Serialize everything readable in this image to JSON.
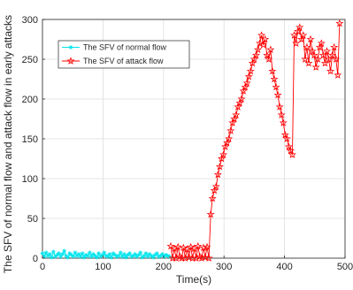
{
  "chart_data": {
    "type": "line",
    "title": "",
    "xlabel": "Time(s)",
    "ylabel": "The SFV of normal flow and attack flow in early attacks",
    "xlim": [
      0,
      500
    ],
    "ylim": [
      0,
      300
    ],
    "xticks": [
      "0",
      "100",
      "200",
      "300",
      "400",
      "500"
    ],
    "yticks": [
      "0",
      "50",
      "100",
      "150",
      "200",
      "250",
      "300"
    ],
    "grid": true,
    "legend_position": "top-left",
    "series": [
      {
        "name": "The SFV of normal flow",
        "color": "#00e5ee",
        "marker": "asterisk",
        "x": [
          0,
          3,
          6,
          9,
          12,
          15,
          18,
          21,
          24,
          27,
          30,
          33,
          36,
          39,
          42,
          45,
          48,
          51,
          54,
          57,
          60,
          63,
          66,
          69,
          72,
          75,
          78,
          81,
          84,
          87,
          90,
          93,
          96,
          99,
          102,
          105,
          108,
          111,
          114,
          117,
          120,
          123,
          126,
          129,
          132,
          135,
          138,
          141,
          144,
          147,
          150,
          153,
          156,
          159,
          162,
          165,
          168,
          171,
          174,
          177,
          180,
          183,
          186,
          189,
          192,
          195,
          198,
          201,
          204,
          207,
          210
        ],
        "values": [
          6,
          2,
          7,
          3,
          5,
          1,
          8,
          2,
          4,
          6,
          2,
          5,
          9,
          3,
          1,
          6,
          4,
          2,
          7,
          3,
          5,
          2,
          6,
          1,
          4,
          3,
          7,
          2,
          5,
          3,
          1,
          6,
          2,
          4,
          7,
          3,
          2,
          5,
          1,
          6,
          4,
          2,
          3,
          7,
          2,
          5,
          1,
          4,
          6,
          2,
          3,
          5,
          2,
          4,
          7,
          1,
          3,
          6,
          2,
          5,
          3,
          1,
          4,
          6,
          2,
          3,
          5,
          2,
          4,
          3,
          2
        ]
      },
      {
        "name": "The SFV of attack flow",
        "color": "#ff0000",
        "marker": "pentagram",
        "x": [
          212,
          215,
          218,
          221,
          224,
          227,
          230,
          233,
          236,
          239,
          242,
          245,
          248,
          251,
          254,
          257,
          260,
          263,
          266,
          269,
          272,
          275,
          278,
          281,
          284,
          287,
          290,
          293,
          296,
          299,
          302,
          305,
          308,
          311,
          314,
          317,
          320,
          323,
          326,
          329,
          332,
          335,
          338,
          341,
          344,
          347,
          350,
          353,
          356,
          359,
          362,
          365,
          368,
          371,
          374,
          377,
          380,
          383,
          386,
          389,
          392,
          395,
          398,
          401,
          404,
          407,
          410,
          413,
          416,
          419,
          422,
          425,
          428,
          431,
          434,
          437,
          440,
          443,
          446,
          449,
          452,
          455,
          458,
          461,
          464,
          467,
          470,
          473,
          476,
          479,
          482,
          485,
          488,
          491
        ],
        "values": [
          15,
          0,
          12,
          0,
          14,
          2,
          0,
          13,
          0,
          11,
          1,
          14,
          0,
          12,
          0,
          15,
          2,
          0,
          13,
          1,
          14,
          0,
          55,
          75,
          85,
          90,
          105,
          115,
          125,
          130,
          140,
          145,
          150,
          160,
          170,
          175,
          180,
          190,
          195,
          200,
          210,
          215,
          220,
          228,
          235,
          245,
          250,
          255,
          262,
          270,
          280,
          268,
          275,
          255,
          250,
          262,
          235,
          225,
          215,
          205,
          190,
          180,
          170,
          155,
          150,
          140,
          135,
          130,
          280,
          270,
          285,
          290,
          275,
          280,
          250,
          265,
          245,
          275,
          260,
          255,
          240,
          250,
          265,
          270,
          255,
          245,
          260,
          250,
          235,
          255,
          265,
          250,
          230,
          295
        ]
      }
    ]
  }
}
